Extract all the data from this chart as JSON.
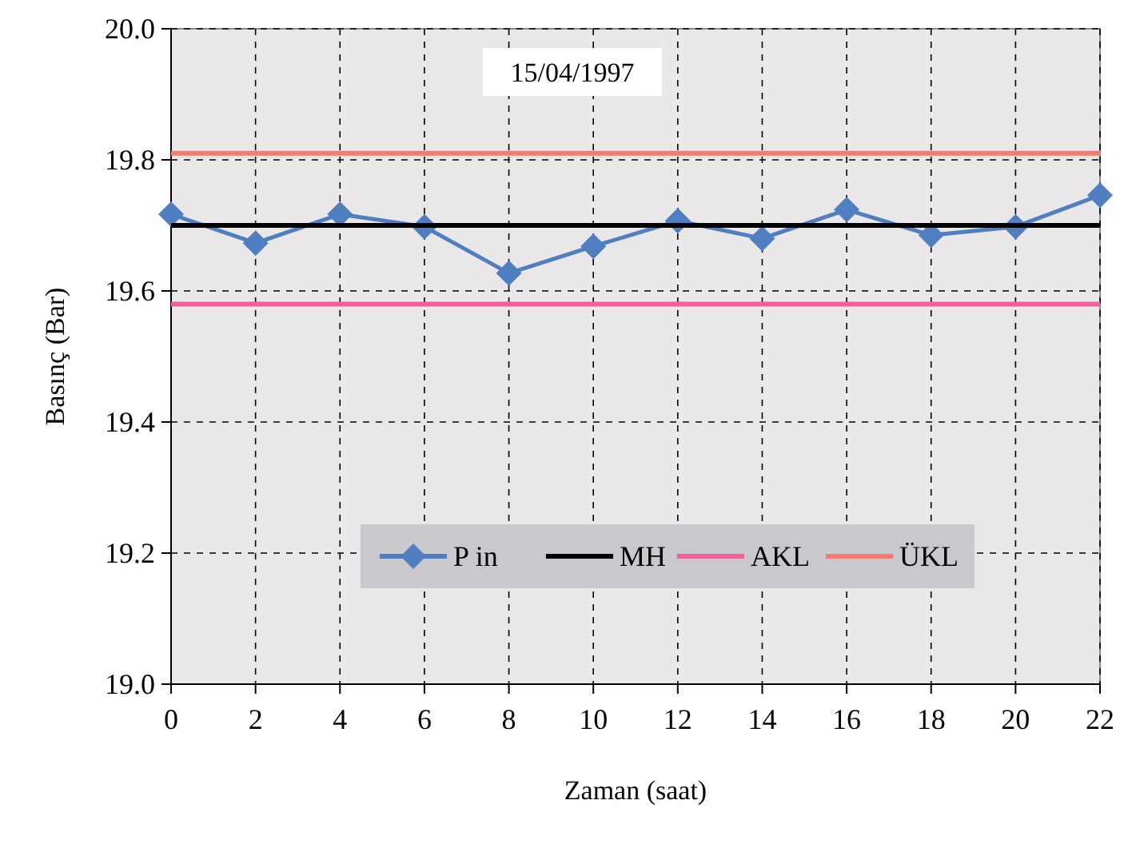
{
  "chart_data": {
    "type": "line",
    "title": "15/04/1997",
    "xlabel": "Zaman (saat)",
    "ylabel": "Basınç (Bar)",
    "x": [
      0,
      2,
      4,
      6,
      8,
      10,
      12,
      14,
      16,
      18,
      20,
      22
    ],
    "series": [
      {
        "name": "P in",
        "color": "#4f7fc0",
        "marker": "diamond",
        "values": [
          19.717,
          19.673,
          19.717,
          19.698,
          19.627,
          19.668,
          19.707,
          19.68,
          19.724,
          19.685,
          19.698,
          19.746
        ]
      },
      {
        "name": "MH",
        "color": "#000000",
        "marker": "none",
        "values": [
          19.7,
          19.7,
          19.7,
          19.7,
          19.7,
          19.7,
          19.7,
          19.7,
          19.7,
          19.7,
          19.7,
          19.7
        ]
      },
      {
        "name": "AKL",
        "color": "#f0609a",
        "marker": "none",
        "values": [
          19.58,
          19.58,
          19.58,
          19.58,
          19.58,
          19.58,
          19.58,
          19.58,
          19.58,
          19.58,
          19.58,
          19.58
        ]
      },
      {
        "name": "ÜKL",
        "color": "#f57a70",
        "marker": "none",
        "values": [
          19.81,
          19.81,
          19.81,
          19.81,
          19.81,
          19.81,
          19.81,
          19.81,
          19.81,
          19.81,
          19.81,
          19.81
        ]
      }
    ],
    "xlim": [
      0,
      22
    ],
    "xticks": [
      0,
      2,
      4,
      6,
      8,
      10,
      12,
      14,
      16,
      18,
      20,
      22
    ],
    "ylim": [
      19.0,
      20.0
    ],
    "yticks": [
      {
        "value": 19.0,
        "label": "19.0"
      },
      {
        "value": 19.2,
        "label": "19.2"
      },
      {
        "value": 19.4,
        "label": "19.4"
      },
      {
        "value": 19.6,
        "label": "19.6"
      },
      {
        "value": 19.8,
        "label": "19.8"
      },
      {
        "value": 20.0,
        "label": "20.0"
      }
    ],
    "grid": true,
    "legend": "bottom",
    "line_style": "solid"
  }
}
